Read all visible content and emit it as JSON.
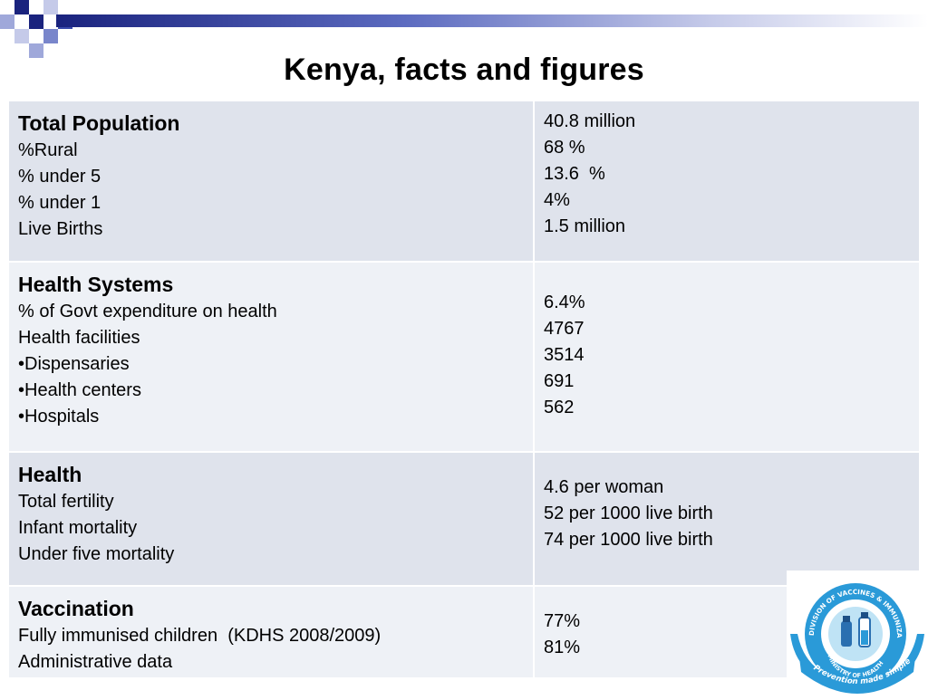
{
  "title": "Kenya, facts and figures",
  "rows": [
    {
      "heading": "Total Population",
      "labels": [
        "%Rural",
        "% under 5",
        "% under 1",
        "Live Births"
      ],
      "values": [
        "40.8 million",
        "68 %",
        "13.6  %",
        "4%",
        "1.5 million"
      ]
    },
    {
      "heading": "Health Systems",
      "labels": [
        "% of Govt expenditure on health",
        "Health facilities",
        "•Dispensaries",
        "•Health centers",
        "•Hospitals"
      ],
      "values": [
        "6.4%",
        "4767",
        "3514",
        "691",
        "562"
      ]
    },
    {
      "heading": "Health",
      "labels": [
        "Total fertility",
        "Infant mortality",
        "Under five mortality"
      ],
      "values": [
        "4.6 per woman",
        "52 per 1000 live birth",
        "74 per 1000 live birth"
      ]
    },
    {
      "heading": "Vaccination",
      "labels": [
        "Fully immunised children  (KDHS 2008/2009)",
        "Administrative data"
      ],
      "values": [
        "77%",
        "81%"
      ]
    }
  ],
  "logo": {
    "ring_text": "DIVISION OF VACCINES & IMMUNIZATION",
    "inner_text": "MINISTRY OF HEALTH",
    "banner_text": "Prevention made simple",
    "colors": {
      "ring": "#2a9ad8",
      "banner": "#2a9ad8",
      "inner": "#ffffff"
    }
  }
}
